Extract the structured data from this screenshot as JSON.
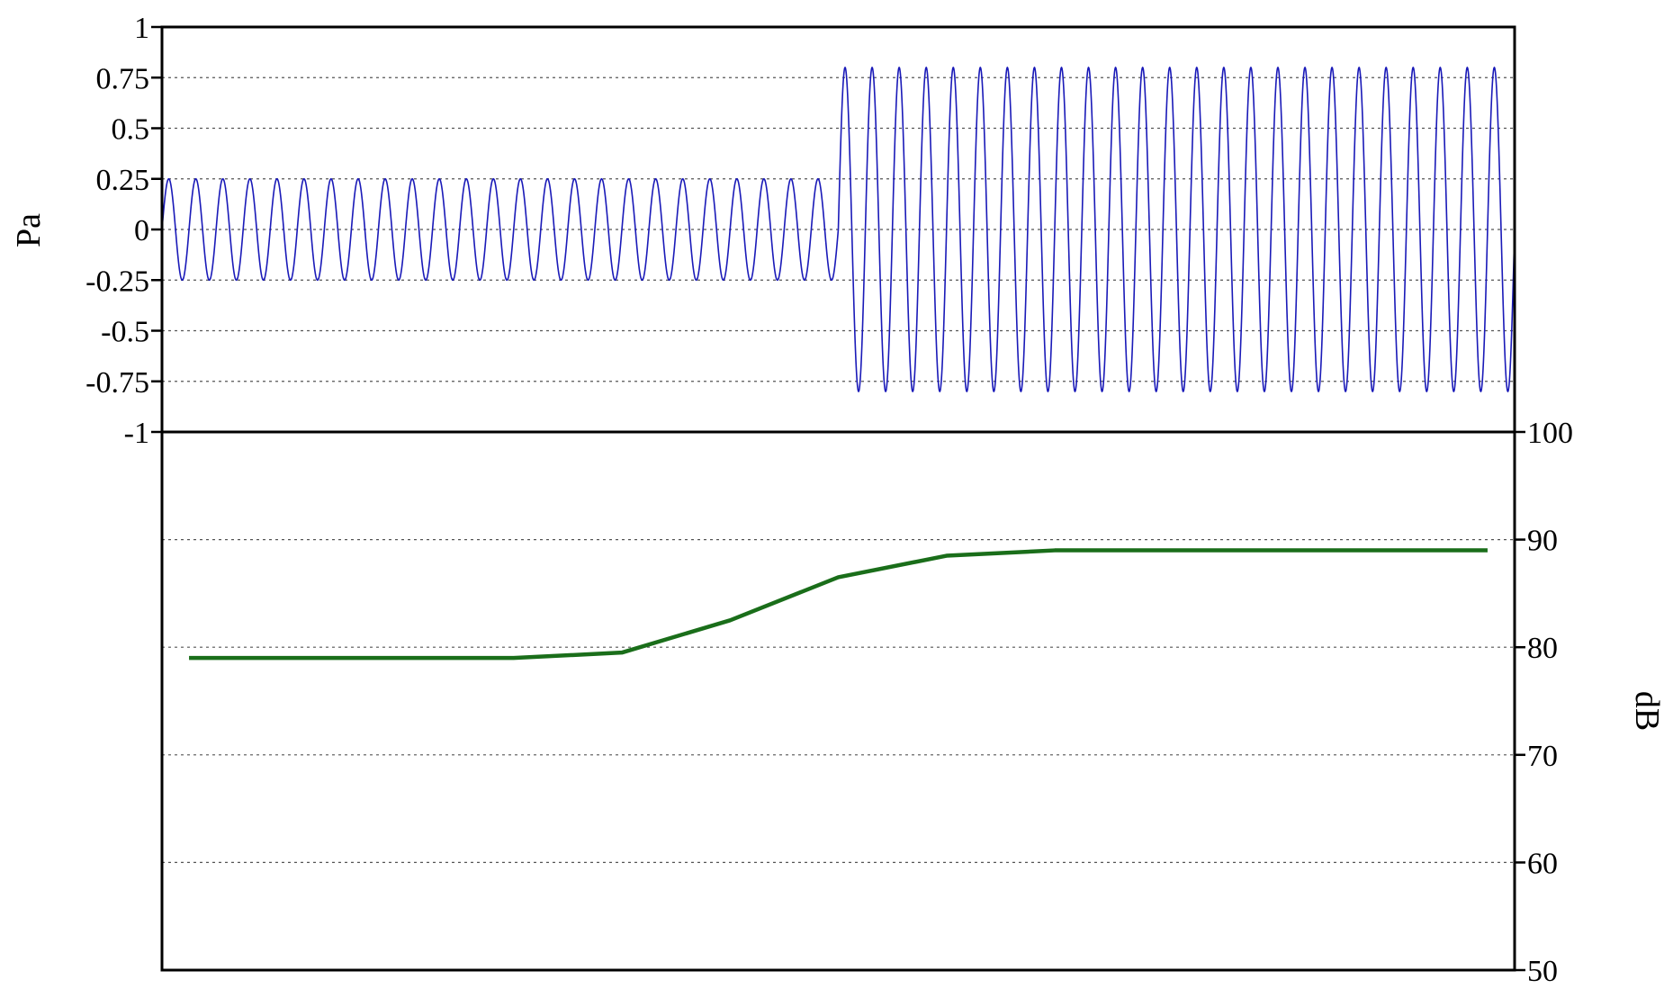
{
  "chart_data": [
    {
      "type": "line",
      "title": "",
      "xlabel": "",
      "ylabel": "Pa",
      "ylim": [
        -1,
        1
      ],
      "y_ticks": [
        1,
        0.75,
        0.5,
        0.25,
        0,
        -0.25,
        -0.5,
        -0.75,
        -1
      ],
      "y_tick_labels": [
        "1",
        "0.75",
        "0.5",
        "0.25",
        "0",
        "-0.25",
        "-0.5",
        "-0.75",
        "-1"
      ],
      "grid": true,
      "y_axis_side": "left",
      "series": [
        {
          "color": "#1a1ab8",
          "waveform": "sine",
          "segments": [
            {
              "x_start": 0.0,
              "x_end": 0.5,
              "amplitude": 0.25,
              "cycles": 25
            },
            {
              "x_start": 0.5,
              "x_end": 1.0,
              "amplitude": 0.8,
              "cycles": 25
            }
          ]
        }
      ]
    },
    {
      "type": "line",
      "title": "",
      "xlabel": "",
      "ylabel": "dB",
      "ylim": [
        50,
        100
      ],
      "y_ticks": [
        100,
        90,
        80,
        70,
        60,
        50
      ],
      "y_tick_labels": [
        "100",
        "90",
        "80",
        "70",
        "60",
        "50"
      ],
      "grid": true,
      "y_axis_side": "right",
      "series": [
        {
          "color": "#1a6e1a",
          "x": [
            0.02,
            0.26,
            0.34,
            0.42,
            0.5,
            0.58,
            0.66,
            0.74,
            0.82,
            0.9,
            0.98
          ],
          "values": [
            79,
            79,
            79.5,
            82.5,
            86.5,
            88.5,
            89,
            89,
            89,
            89,
            89
          ]
        }
      ]
    }
  ]
}
